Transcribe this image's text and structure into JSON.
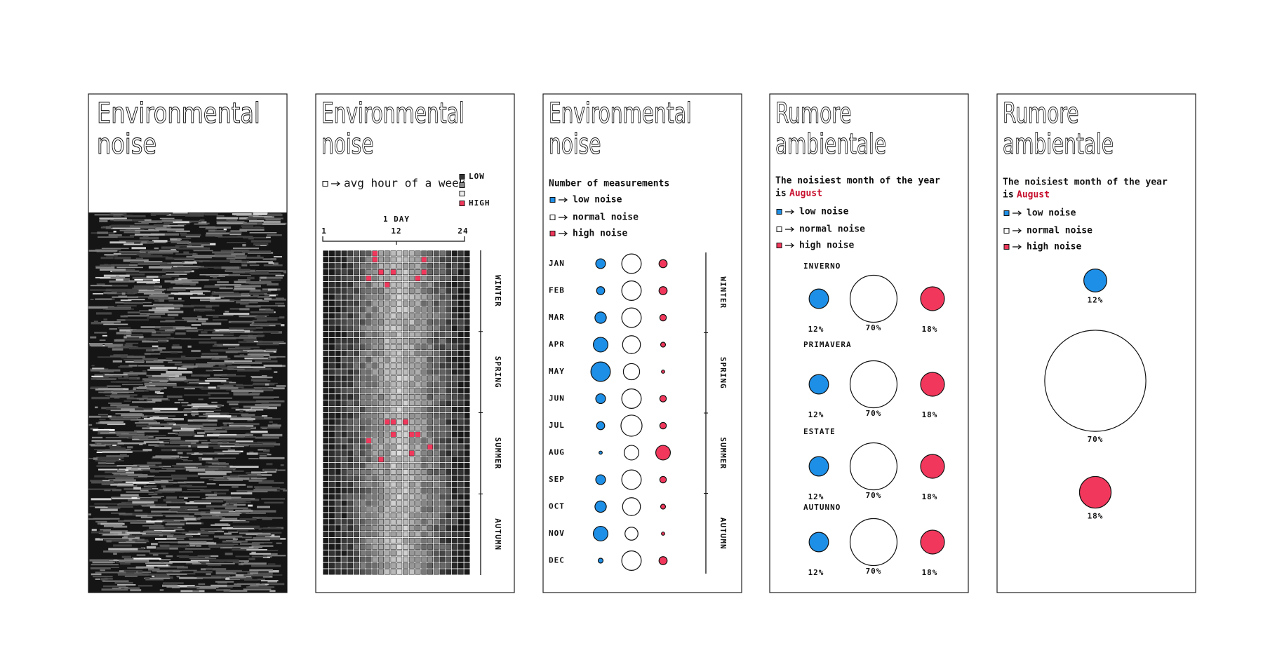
{
  "panels": [
    {
      "title": [
        "Environmental",
        "noise"
      ]
    },
    {
      "title": [
        "Environmental",
        "noise"
      ],
      "legend": {
        "cell": "avg hour of a week",
        "low": "LOW",
        "high": "HIGH"
      },
      "axis": {
        "label": "1 DAY",
        "ticks": [
          "1",
          "12",
          "24"
        ]
      },
      "seasons": [
        "WINTER",
        "SPRING",
        "SUMMER",
        "AUTUMN"
      ]
    },
    {
      "title": [
        "Environmental",
        "noise"
      ],
      "subtitle": "Number of measurements",
      "legend": [
        "low noise",
        "normal noise",
        "high noise"
      ],
      "months": [
        {
          "label": "JAN",
          "sizes": [
            6,
            12,
            5
          ]
        },
        {
          "label": "FEB",
          "sizes": [
            5,
            12,
            5
          ]
        },
        {
          "label": "MAR",
          "sizes": [
            7,
            12,
            4
          ]
        },
        {
          "label": "APR",
          "sizes": [
            9,
            11,
            3
          ]
        },
        {
          "label": "MAY",
          "sizes": [
            12,
            10,
            2
          ]
        },
        {
          "label": "JUN",
          "sizes": [
            6,
            12,
            4
          ]
        },
        {
          "label": "JUL",
          "sizes": [
            5,
            13,
            4
          ]
        },
        {
          "label": "AUG",
          "sizes": [
            2,
            9,
            9
          ]
        },
        {
          "label": "SEP",
          "sizes": [
            6,
            12,
            4
          ]
        },
        {
          "label": "OCT",
          "sizes": [
            7,
            11,
            3
          ]
        },
        {
          "label": "NOV",
          "sizes": [
            9,
            8,
            2
          ]
        },
        {
          "label": "DEC",
          "sizes": [
            3,
            12,
            5
          ]
        }
      ],
      "seasons": [
        "WINTER",
        "SPRING",
        "SUMMER",
        "AUTUMN"
      ]
    },
    {
      "title": [
        "Rumore",
        "ambientale"
      ],
      "subtitle": [
        "The noisiest month of the year",
        "is",
        "August"
      ],
      "legend": [
        "low noise",
        "normal noise",
        "high noise"
      ],
      "groups": [
        {
          "label": "INVERNO",
          "values": [
            {
              "value": 12,
              "label": "12%"
            },
            {
              "value": 70,
              "label": "70%"
            },
            {
              "value": 18,
              "label": "18%"
            }
          ]
        },
        {
          "label": "PRIMAVERA",
          "values": [
            {
              "value": 12,
              "label": "12%"
            },
            {
              "value": 70,
              "label": "70%"
            },
            {
              "value": 18,
              "label": "18%"
            }
          ]
        },
        {
          "label": "ESTATE",
          "values": [
            {
              "value": 12,
              "label": "12%"
            },
            {
              "value": 70,
              "label": "70%"
            },
            {
              "value": 18,
              "label": "18%"
            }
          ]
        },
        {
          "label": "AUTUNNO",
          "values": [
            {
              "value": 12,
              "label": "12%"
            },
            {
              "value": 70,
              "label": "70%"
            },
            {
              "value": 18,
              "label": "18%"
            }
          ]
        }
      ]
    },
    {
      "title": [
        "Rumore",
        "ambientale"
      ],
      "subtitle": [
        "The noisiest month of the year",
        "is",
        "August"
      ],
      "legend": [
        "low noise",
        "normal noise",
        "high noise"
      ],
      "values": [
        {
          "value": 12,
          "label": "12%"
        },
        {
          "value": 70,
          "label": "70%"
        },
        {
          "value": 18,
          "label": "18%"
        }
      ]
    }
  ]
}
